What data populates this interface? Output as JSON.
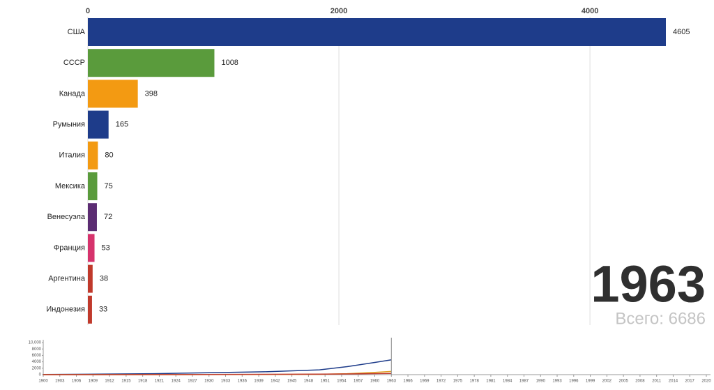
{
  "chart_data": [
    {
      "type": "bar",
      "orientation": "horizontal",
      "categories": [
        "США",
        "СССР",
        "Канада",
        "Румыния",
        "Италия",
        "Мексика",
        "Венесуэла",
        "Франция",
        "Аргентина",
        "Индонезия"
      ],
      "values": [
        4605,
        1008,
        398,
        165,
        80,
        75,
        72,
        53,
        38,
        33
      ],
      "colors": [
        "#1e3c8a",
        "#5a9b3c",
        "#f39a12",
        "#1e3c8a",
        "#f39a12",
        "#5a9b3c",
        "#5b2c72",
        "#d6336c",
        "#c0392b",
        "#c0392b"
      ],
      "xlim": [
        0,
        4605
      ],
      "xticks": [
        0,
        2000,
        4000
      ],
      "grid": true
    },
    {
      "type": "line",
      "x": [
        1900,
        1910,
        1920,
        1930,
        1940,
        1950,
        1955,
        1960,
        1963
      ],
      "series": [
        {
          "name": "США",
          "color": "#1e3c8a",
          "values": [
            50,
            150,
            300,
            600,
            900,
            1500,
            2500,
            3800,
            4605
          ]
        },
        {
          "name": "СССР",
          "color": "#e0a020",
          "values": [
            0,
            0,
            0,
            20,
            50,
            100,
            300,
            700,
            1008
          ]
        },
        {
          "name": "Канада",
          "color": "#c0392b",
          "values": [
            0,
            10,
            30,
            60,
            100,
            150,
            220,
            320,
            398
          ]
        }
      ],
      "xlim": [
        1900,
        2020
      ],
      "xticks": [
        1900,
        1903,
        1906,
        1909,
        1912,
        1915,
        1918,
        1921,
        1924,
        1927,
        1930,
        1933,
        1936,
        1939,
        1942,
        1945,
        1948,
        1951,
        1954,
        1957,
        1960,
        1963,
        1966,
        1969,
        1972,
        1975,
        1978,
        1981,
        1984,
        1987,
        1990,
        1993,
        1996,
        1999,
        2002,
        2005,
        2008,
        2011,
        2014,
        2017,
        2020
      ],
      "ylim": [
        0,
        10000
      ],
      "yticks": [
        0,
        2000,
        4000,
        6000,
        8000,
        {
          "value": 10000,
          "label": "10,000"
        }
      ]
    }
  ],
  "year": "1963",
  "total_label": "Всего: 6686"
}
